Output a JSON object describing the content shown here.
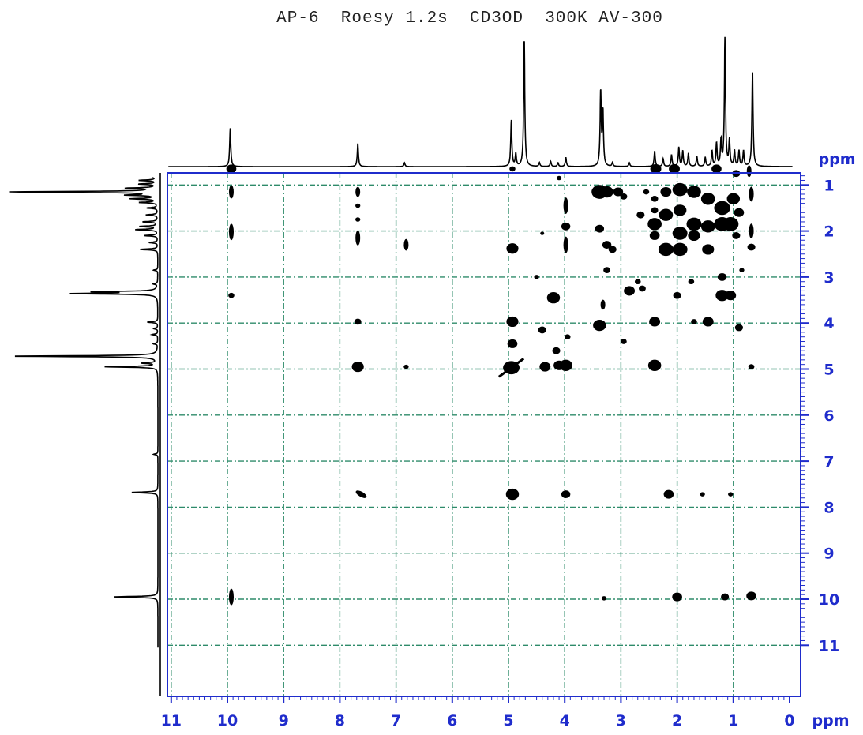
{
  "chart_data": {
    "type": "scatter",
    "title": "AP-6  Roesy 1.2s  CD3OD  300K AV-300",
    "xlabel": "ppm",
    "ylabel": "ppm",
    "xlim": [
      11,
      0
    ],
    "ylim": [
      0,
      11
    ],
    "x_ticks": [
      "11",
      "10",
      "9",
      "8",
      "7",
      "6",
      "5",
      "4",
      "3",
      "2",
      "1",
      "0"
    ],
    "y_ticks": [
      "1",
      "2",
      "3",
      "4",
      "5",
      "6",
      "7",
      "8",
      "9",
      "10",
      "11"
    ],
    "grid": true,
    "colors": {
      "axis": "#1f2ccc",
      "grid": "#2e8b6a",
      "peaks": "#000000",
      "spectrum": "#000000"
    },
    "projection_1d": [
      {
        "ppm": 9.95,
        "h": 0.3
      },
      {
        "ppm": 7.68,
        "h": 0.18
      },
      {
        "ppm": 6.85,
        "h": 0.03
      },
      {
        "ppm": 4.95,
        "h": 0.36
      },
      {
        "ppm": 4.87,
        "h": 0.1
      },
      {
        "ppm": 4.72,
        "h": 1.0
      },
      {
        "ppm": 4.45,
        "h": 0.03
      },
      {
        "ppm": 4.25,
        "h": 0.04
      },
      {
        "ppm": 4.12,
        "h": 0.03
      },
      {
        "ppm": 3.98,
        "h": 0.07
      },
      {
        "ppm": 3.36,
        "h": 0.58
      },
      {
        "ppm": 3.32,
        "h": 0.42
      },
      {
        "ppm": 3.15,
        "h": 0.03
      },
      {
        "ppm": 2.85,
        "h": 0.03
      },
      {
        "ppm": 2.4,
        "h": 0.12
      },
      {
        "ppm": 2.25,
        "h": 0.06
      },
      {
        "ppm": 2.1,
        "h": 0.09
      },
      {
        "ppm": 1.97,
        "h": 0.15
      },
      {
        "ppm": 1.9,
        "h": 0.12
      },
      {
        "ppm": 1.8,
        "h": 0.1
      },
      {
        "ppm": 1.65,
        "h": 0.08
      },
      {
        "ppm": 1.5,
        "h": 0.07
      },
      {
        "ppm": 1.38,
        "h": 0.12
      },
      {
        "ppm": 1.3,
        "h": 0.18
      },
      {
        "ppm": 1.22,
        "h": 0.2
      },
      {
        "ppm": 1.15,
        "h": 1.0
      },
      {
        "ppm": 1.07,
        "h": 0.2
      },
      {
        "ppm": 0.98,
        "h": 0.12
      },
      {
        "ppm": 0.9,
        "h": 0.12
      },
      {
        "ppm": 0.82,
        "h": 0.12
      },
      {
        "ppm": 0.66,
        "h": 0.75
      }
    ],
    "peaks": [
      {
        "x": 9.93,
        "y": 0.65,
        "s": 1.0
      },
      {
        "x": 9.93,
        "y": 1.15,
        "s": 0.8,
        "t": "v"
      },
      {
        "x": 9.93,
        "y": 2.02,
        "s": 1.0,
        "t": "v"
      },
      {
        "x": 9.93,
        "y": 3.4,
        "s": 0.6
      },
      {
        "x": 9.93,
        "y": 9.95,
        "s": 1.0,
        "t": "v"
      },
      {
        "x": 7.68,
        "y": 1.15,
        "s": 0.6,
        "t": "v"
      },
      {
        "x": 7.68,
        "y": 1.45,
        "s": 0.5
      },
      {
        "x": 7.68,
        "y": 1.75,
        "s": 0.5
      },
      {
        "x": 7.68,
        "y": 2.15,
        "s": 0.9,
        "t": "v"
      },
      {
        "x": 7.68,
        "y": 3.97,
        "s": 0.7
      },
      {
        "x": 7.68,
        "y": 4.95,
        "s": 1.2
      },
      {
        "x": 7.62,
        "y": 7.72,
        "s": 1.0,
        "t": "d"
      },
      {
        "x": 6.82,
        "y": 2.3,
        "s": 0.7,
        "t": "v"
      },
      {
        "x": 6.82,
        "y": 4.95,
        "s": 0.5
      },
      {
        "x": 4.93,
        "y": 0.65,
        "s": 0.6
      },
      {
        "x": 4.93,
        "y": 2.38,
        "s": 1.2
      },
      {
        "x": 4.93,
        "y": 3.97,
        "s": 1.2
      },
      {
        "x": 4.93,
        "y": 4.45,
        "s": 1.0
      },
      {
        "x": 4.95,
        "y": 4.97,
        "s": 1.9,
        "t": "x"
      },
      {
        "x": 4.93,
        "y": 7.72,
        "s": 1.3
      },
      {
        "x": 4.35,
        "y": 4.95,
        "s": 1.1
      },
      {
        "x": 4.1,
        "y": 4.92,
        "s": 1.1
      },
      {
        "x": 3.98,
        "y": 4.92,
        "s": 1.3
      },
      {
        "x": 4.15,
        "y": 4.6,
        "s": 0.8
      },
      {
        "x": 4.5,
        "y": 3.0,
        "s": 0.5
      },
      {
        "x": 4.2,
        "y": 3.45,
        "s": 1.3
      },
      {
        "x": 4.4,
        "y": 4.15,
        "s": 0.8
      },
      {
        "x": 3.95,
        "y": 4.3,
        "s": 0.6
      },
      {
        "x": 3.98,
        "y": 1.45,
        "s": 1.0,
        "t": "v"
      },
      {
        "x": 3.98,
        "y": 1.9,
        "s": 0.9
      },
      {
        "x": 3.98,
        "y": 2.3,
        "s": 1.0,
        "t": "v"
      },
      {
        "x": 3.98,
        "y": 7.72,
        "s": 0.9
      },
      {
        "x": 4.1,
        "y": 0.85,
        "s": 0.5
      },
      {
        "x": 4.4,
        "y": 2.05,
        "s": 0.4
      },
      {
        "x": 3.38,
        "y": 1.15,
        "s": 1.6
      },
      {
        "x": 3.25,
        "y": 1.15,
        "s": 1.3
      },
      {
        "x": 3.05,
        "y": 1.15,
        "s": 1.0
      },
      {
        "x": 2.95,
        "y": 1.25,
        "s": 0.7
      },
      {
        "x": 3.38,
        "y": 1.95,
        "s": 0.9
      },
      {
        "x": 3.25,
        "y": 2.3,
        "s": 0.9
      },
      {
        "x": 3.15,
        "y": 2.4,
        "s": 0.8
      },
      {
        "x": 3.25,
        "y": 2.85,
        "s": 0.7
      },
      {
        "x": 3.32,
        "y": 3.6,
        "s": 0.6,
        "t": "v"
      },
      {
        "x": 3.38,
        "y": 4.05,
        "s": 1.3
      },
      {
        "x": 2.95,
        "y": 4.4,
        "s": 0.6
      },
      {
        "x": 2.85,
        "y": 3.3,
        "s": 1.1
      },
      {
        "x": 2.38,
        "y": 0.65,
        "s": 1.1
      },
      {
        "x": 2.05,
        "y": 0.65,
        "s": 1.1
      },
      {
        "x": 1.3,
        "y": 0.65,
        "s": 1.0
      },
      {
        "x": 2.4,
        "y": 1.3,
        "s": 0.7
      },
      {
        "x": 2.4,
        "y": 1.55,
        "s": 0.7
      },
      {
        "x": 2.4,
        "y": 1.85,
        "s": 1.4
      },
      {
        "x": 2.4,
        "y": 2.1,
        "s": 1.0
      },
      {
        "x": 2.2,
        "y": 1.15,
        "s": 1.1
      },
      {
        "x": 2.2,
        "y": 1.65,
        "s": 1.4
      },
      {
        "x": 2.2,
        "y": 2.4,
        "s": 1.5
      },
      {
        "x": 1.95,
        "y": 1.1,
        "s": 1.5
      },
      {
        "x": 1.95,
        "y": 1.55,
        "s": 1.3
      },
      {
        "x": 1.95,
        "y": 2.05,
        "s": 1.5
      },
      {
        "x": 1.95,
        "y": 2.4,
        "s": 1.5
      },
      {
        "x": 1.7,
        "y": 1.15,
        "s": 1.4
      },
      {
        "x": 1.7,
        "y": 1.85,
        "s": 1.5
      },
      {
        "x": 1.7,
        "y": 2.1,
        "s": 1.2
      },
      {
        "x": 1.45,
        "y": 1.3,
        "s": 1.4
      },
      {
        "x": 1.45,
        "y": 1.9,
        "s": 1.4
      },
      {
        "x": 1.45,
        "y": 2.4,
        "s": 1.2
      },
      {
        "x": 1.2,
        "y": 1.5,
        "s": 1.6
      },
      {
        "x": 1.2,
        "y": 1.85,
        "s": 1.6
      },
      {
        "x": 1.05,
        "y": 1.85,
        "s": 1.6
      },
      {
        "x": 1.0,
        "y": 1.3,
        "s": 1.3
      },
      {
        "x": 0.9,
        "y": 1.6,
        "s": 1.0
      },
      {
        "x": 0.95,
        "y": 2.1,
        "s": 0.8
      },
      {
        "x": 0.95,
        "y": 0.75,
        "s": 0.8
      },
      {
        "x": 0.72,
        "y": 0.7,
        "s": 0.7,
        "t": "v"
      },
      {
        "x": 0.68,
        "y": 1.2,
        "s": 0.9,
        "t": "v"
      },
      {
        "x": 0.68,
        "y": 2.0,
        "s": 0.9,
        "t": "v"
      },
      {
        "x": 0.68,
        "y": 2.35,
        "s": 0.8
      },
      {
        "x": 2.65,
        "y": 1.65,
        "s": 0.8
      },
      {
        "x": 2.55,
        "y": 1.15,
        "s": 0.6
      },
      {
        "x": 2.7,
        "y": 3.1,
        "s": 0.6
      },
      {
        "x": 2.62,
        "y": 3.25,
        "s": 0.7
      },
      {
        "x": 2.4,
        "y": 3.97,
        "s": 1.1
      },
      {
        "x": 2.4,
        "y": 4.92,
        "s": 1.3
      },
      {
        "x": 2.0,
        "y": 3.4,
        "s": 0.8
      },
      {
        "x": 1.75,
        "y": 3.1,
        "s": 0.6
      },
      {
        "x": 1.2,
        "y": 3.0,
        "s": 0.9
      },
      {
        "x": 1.2,
        "y": 3.4,
        "s": 1.3
      },
      {
        "x": 1.05,
        "y": 3.4,
        "s": 1.1
      },
      {
        "x": 1.45,
        "y": 3.97,
        "s": 1.1
      },
      {
        "x": 1.7,
        "y": 3.97,
        "s": 0.6
      },
      {
        "x": 0.9,
        "y": 4.1,
        "s": 0.8
      },
      {
        "x": 0.85,
        "y": 2.85,
        "s": 0.5
      },
      {
        "x": 0.68,
        "y": 4.95,
        "s": 0.6
      },
      {
        "x": 2.15,
        "y": 7.72,
        "s": 1.0
      },
      {
        "x": 1.55,
        "y": 7.72,
        "s": 0.5
      },
      {
        "x": 1.05,
        "y": 7.72,
        "s": 0.5
      },
      {
        "x": 2.0,
        "y": 9.95,
        "s": 1.0
      },
      {
        "x": 1.15,
        "y": 9.95,
        "s": 0.8
      },
      {
        "x": 0.68,
        "y": 9.93,
        "s": 1.0
      },
      {
        "x": 3.3,
        "y": 9.98,
        "s": 0.5
      }
    ]
  }
}
